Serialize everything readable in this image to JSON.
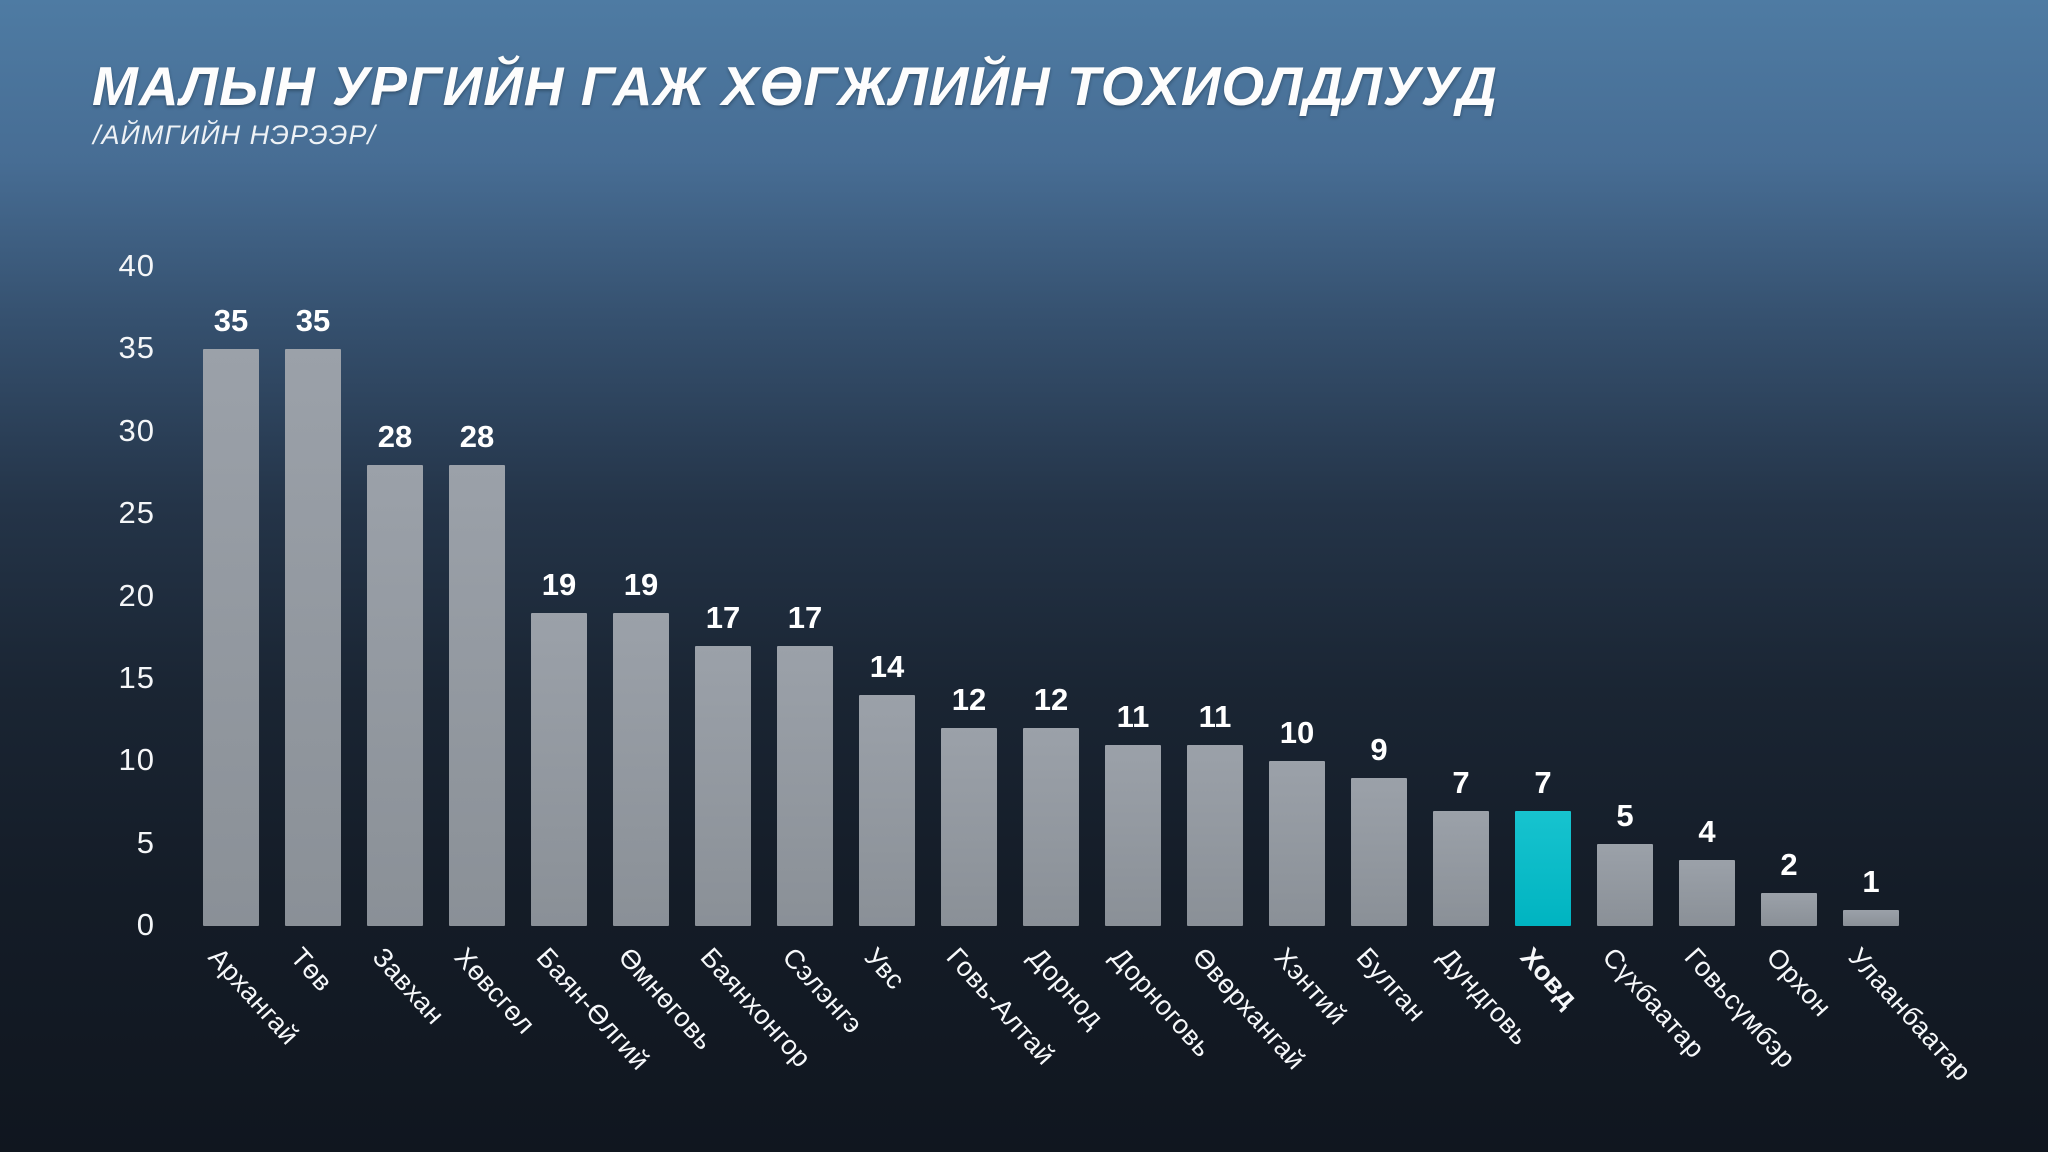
{
  "title": "МАЛЫН УРГИЙН ГАЖ ХӨГЖЛИЙН ТОХИОЛДЛУУД",
  "subtitle": "/АЙМГИЙН НЭРЭЭР/",
  "colors": {
    "background_top": "#4e7ba3",
    "background_bottom": "#10161f",
    "bar": "#8e949b",
    "highlight": "#0cbcc8",
    "text": "#ffffff"
  },
  "chart_data": {
    "type": "bar",
    "title": "МАЛЫН УРГИЙН ГАЖ ХӨГЖЛИЙН ТОХИОЛДЛУУД",
    "subtitle": "/АЙМГИЙН НЭРЭЭР/",
    "categories": [
      "Архангай",
      "Төв",
      "Завхан",
      "Хөвсгөл",
      "Баян-Өлгий",
      "Өмнөговь",
      "Баянхонгор",
      "Сэлэнгэ",
      "Увс",
      "Говь-Алтай",
      "Дорнод",
      "Дорноговь",
      "Өвөрхангай",
      "Хэнтий",
      "Булган",
      "Дундговь",
      "Ховд",
      "Сүхбаатар",
      "Говьсүмбэр",
      "Орхон",
      "Улаанбаатар"
    ],
    "values": [
      35,
      35,
      28,
      28,
      19,
      19,
      17,
      17,
      14,
      12,
      12,
      11,
      11,
      10,
      9,
      7,
      7,
      5,
      4,
      2,
      1
    ],
    "highlight_index": 16,
    "highlight_category": "Ховд",
    "xlabel": "",
    "ylabel": "",
    "ylim": [
      0,
      40
    ],
    "yticks": [
      0,
      5,
      10,
      15,
      20,
      25,
      30,
      35,
      40
    ],
    "grid": false,
    "legend": null,
    "value_labels": true
  }
}
